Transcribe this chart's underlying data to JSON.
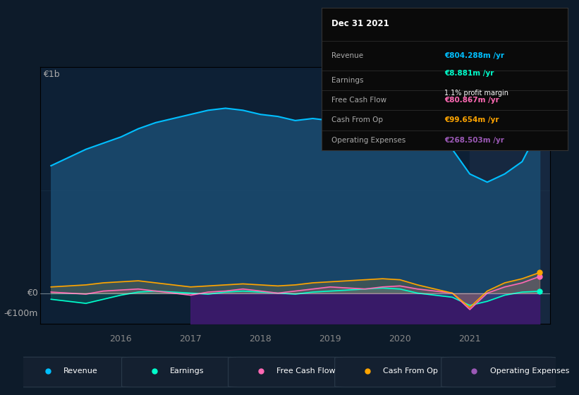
{
  "bg_color": "#0d1b2a",
  "chart_bg": "#0d2035",
  "grid_color": "#1e3a50",
  "years": [
    2015.0,
    2015.25,
    2015.5,
    2015.75,
    2016.0,
    2016.25,
    2016.5,
    2016.75,
    2017.0,
    2017.25,
    2017.5,
    2017.75,
    2018.0,
    2018.25,
    2018.5,
    2018.75,
    2019.0,
    2019.25,
    2019.5,
    2019.75,
    2020.0,
    2020.25,
    2020.5,
    2020.75,
    2021.0,
    2021.25,
    2021.5,
    2021.75,
    2022.0
  ],
  "revenue": [
    620,
    660,
    700,
    730,
    760,
    800,
    830,
    850,
    870,
    890,
    900,
    890,
    870,
    860,
    840,
    850,
    840,
    860,
    880,
    900,
    880,
    820,
    770,
    700,
    580,
    540,
    580,
    640,
    804
  ],
  "earnings": [
    -30,
    -40,
    -50,
    -30,
    -10,
    5,
    10,
    5,
    0,
    -5,
    5,
    10,
    5,
    0,
    -5,
    5,
    10,
    15,
    20,
    25,
    20,
    0,
    -10,
    -20,
    -60,
    -40,
    -10,
    5,
    9
  ],
  "free_cash_flow": [
    5,
    0,
    -5,
    10,
    15,
    20,
    10,
    0,
    -10,
    5,
    10,
    20,
    10,
    0,
    10,
    20,
    30,
    25,
    20,
    30,
    35,
    20,
    10,
    0,
    -80,
    0,
    30,
    50,
    81
  ],
  "cash_from_op": [
    30,
    35,
    40,
    50,
    55,
    60,
    50,
    40,
    30,
    35,
    40,
    45,
    40,
    35,
    40,
    50,
    55,
    60,
    65,
    70,
    65,
    40,
    20,
    0,
    -70,
    10,
    50,
    70,
    100
  ],
  "op_expenses": [
    0,
    0,
    0,
    0,
    0,
    0,
    0,
    0,
    -268,
    -265,
    -260,
    -258,
    -255,
    -258,
    -260,
    -260,
    -262,
    -265,
    -260,
    -258,
    -255,
    -250,
    -245,
    -240,
    -240,
    -245,
    -250,
    -255,
    -269
  ],
  "revenue_color": "#00bfff",
  "earnings_color": "#00ffcc",
  "free_cash_flow_color": "#ff69b4",
  "cash_from_op_color": "#ffa500",
  "op_expenses_color": "#9b59b6",
  "revenue_fill": "#1a4a6e",
  "op_expenses_fill": "#3d1a6e",
  "ylim_min": -150,
  "ylim_max": 1100,
  "ylabel_1b": "€1b",
  "ylabel_0": "€0",
  "ylabel_neg100m": "-€100m",
  "xlabel_years": [
    "2016",
    "2017",
    "2018",
    "2019",
    "2020",
    "2021"
  ],
  "tooltip": {
    "date": "Dec 31 2021",
    "revenue_label": "Revenue",
    "revenue_value": "€804.288m /yr",
    "earnings_label": "Earnings",
    "earnings_value": "€8.881m /yr",
    "profit_margin": "1.1% profit margin",
    "fcf_label": "Free Cash Flow",
    "fcf_value": "€80.867m /yr",
    "cfop_label": "Cash From Op",
    "cfop_value": "€99.654m /yr",
    "opex_label": "Operating Expenses",
    "opex_value": "€268.503m /yr"
  },
  "legend_items": [
    {
      "label": "Revenue",
      "color": "#00bfff"
    },
    {
      "label": "Earnings",
      "color": "#00ffcc"
    },
    {
      "label": "Free Cash Flow",
      "color": "#ff69b4"
    },
    {
      "label": "Cash From Op",
      "color": "#ffa500"
    },
    {
      "label": "Operating Expenses",
      "color": "#9b59b6"
    }
  ],
  "highlight_x_start": 2021.0,
  "highlight_x_end": 2022.15,
  "xmin": 2014.85,
  "xmax": 2022.15
}
